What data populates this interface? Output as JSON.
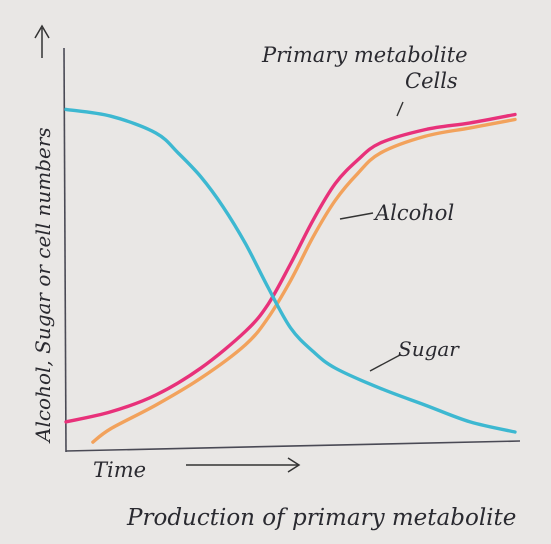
{
  "chart_data": {
    "type": "line",
    "title": "Production of primary metabolite",
    "xlabel": "Time",
    "ylabel": "Alcohol, Sugar or cell numbers",
    "xlim": [
      0,
      10
    ],
    "ylim": [
      0,
      10
    ],
    "grid": false,
    "series": [
      {
        "name": "Primary metabolite Cells",
        "color": "#e8317a",
        "x": [
          0,
          1,
          2,
          3,
          4,
          4.5,
          5,
          5.5,
          6,
          6.5,
          7,
          8,
          9,
          10
        ],
        "y": [
          0.3,
          0.6,
          1.1,
          1.9,
          3.0,
          3.8,
          5.0,
          6.3,
          7.4,
          8.1,
          8.6,
          9.0,
          9.2,
          9.45
        ]
      },
      {
        "name": "Alcohol",
        "color": "#f2a25c",
        "x": [
          0.6,
          1,
          2,
          3,
          4,
          4.5,
          5,
          5.5,
          6,
          6.5,
          7,
          8,
          9,
          10
        ],
        "y": [
          -0.3,
          0.1,
          0.8,
          1.6,
          2.6,
          3.4,
          4.5,
          5.8,
          6.9,
          7.7,
          8.3,
          8.8,
          9.05,
          9.3
        ]
      },
      {
        "name": "Sugar",
        "color": "#3db8d1",
        "x": [
          0,
          1,
          2,
          2.5,
          3,
          3.5,
          4,
          4.5,
          5,
          5.5,
          6,
          7,
          8,
          9,
          10
        ],
        "y": [
          9.6,
          9.4,
          8.9,
          8.3,
          7.6,
          6.7,
          5.6,
          4.3,
          3.1,
          2.4,
          1.9,
          1.3,
          0.8,
          0.3,
          0.0
        ]
      }
    ],
    "labels": {
      "cells_line1": "Primary metabolite",
      "cells_line2": "Cells",
      "alcohol": "Alcohol",
      "sugar": "Sugar"
    }
  }
}
